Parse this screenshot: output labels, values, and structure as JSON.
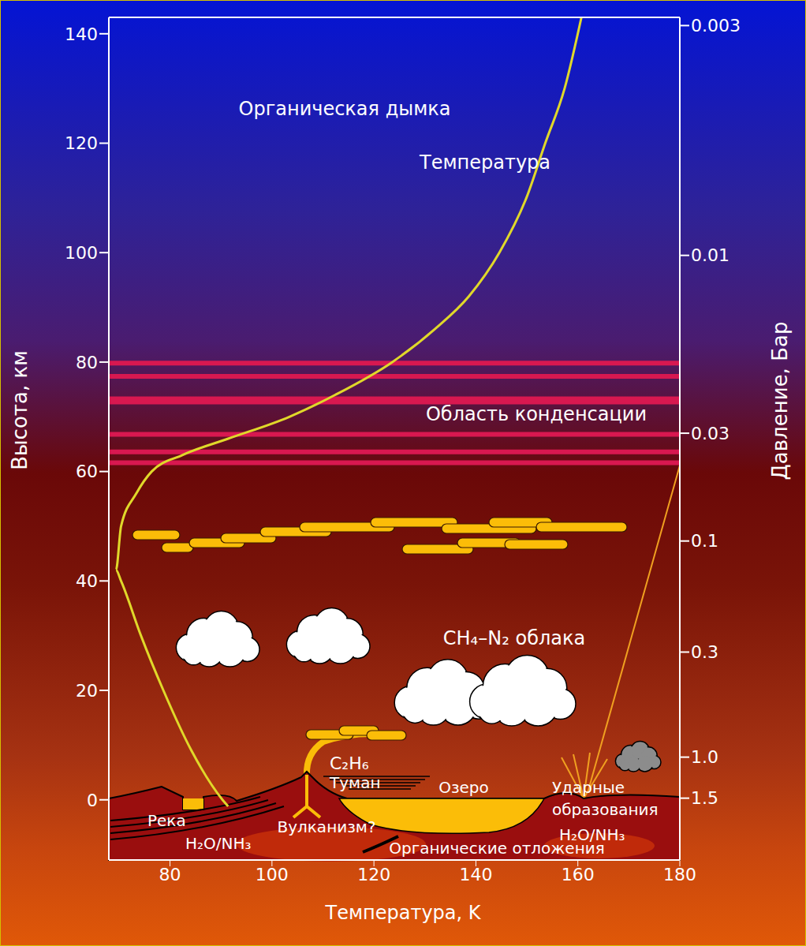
{
  "chart_data": {
    "type": "line",
    "x_label": "Температура, K",
    "y_label": "Высота, км",
    "y2_label": "Давление, Бар",
    "xlim": [
      68,
      180
    ],
    "xticks": [
      80,
      100,
      120,
      140,
      160,
      180
    ],
    "ylim": [
      -11,
      143
    ],
    "yticks": [
      0,
      20,
      40,
      60,
      80,
      100,
      120,
      140
    ],
    "pressure_ticks": [
      {
        "altitude": 141.5,
        "pressure": "0.003"
      },
      {
        "altitude": 99.5,
        "pressure": "0.01"
      },
      {
        "altitude": 67,
        "pressure": "0.03"
      },
      {
        "altitude": 47.3,
        "pressure": "0.1"
      },
      {
        "altitude": 27,
        "pressure": "0.3"
      },
      {
        "altitude": 7.8,
        "pressure": "1.0"
      },
      {
        "altitude": 0.3,
        "pressure": "1.5"
      }
    ],
    "grid": false,
    "series": [
      {
        "name": "Температура",
        "color": "#e0d82a",
        "x": [
          91.4,
          90.3,
          84.2,
          78.7,
          74.3,
          70.4,
          69.4,
          70.4,
          73.4,
          76.4,
          82.4,
          91.4,
          103.4,
          112.4,
          123.6,
          131.9,
          138.6,
          144.6,
          149.9,
          153.6,
          157.4,
          160.7
        ],
        "values": [
          -1.2,
          0,
          9,
          20,
          30,
          40,
          42,
          50,
          56,
          60,
          63,
          66,
          70,
          74,
          80,
          86,
          92,
          100,
          110,
          120,
          130,
          143
        ]
      }
    ],
    "condensation": {
      "label": "Область конденсации",
      "color": "#d81850",
      "altitudes": [
        79.8,
        77.4,
        73,
        66.8,
        63.6,
        61.6
      ]
    },
    "annotations": [
      "Органическая дымка",
      "CH₄–N₂ облака",
      "C₂H₆",
      "Туман",
      "Озеро",
      "Ударные образования",
      "Река",
      "H₂O/NH₃",
      "Вулканизм?",
      "Органические отложения",
      "H₂O/NH₃"
    ]
  }
}
